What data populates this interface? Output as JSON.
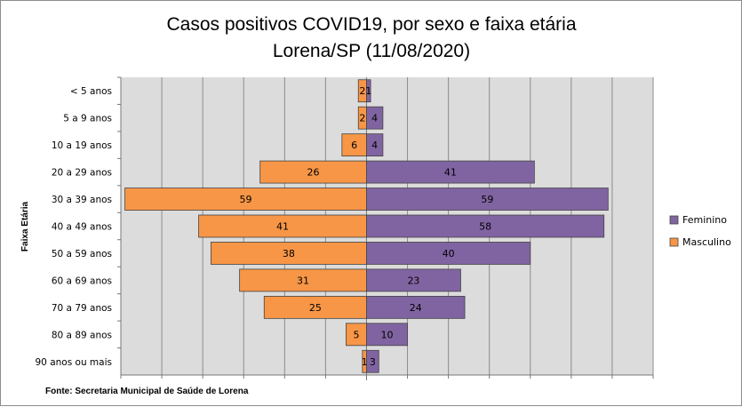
{
  "chart_data": {
    "type": "bar",
    "orientation": "horizontal",
    "title": "Casos positivos COVID19, por sexo e faixa etária",
    "subtitle": "Lorena/SP (11/08/2020)",
    "ylabel": "Faixa Etária",
    "source": "Fonte: Secretaria Municipal  de Saúde de Lorena",
    "categories": [
      "< 5 anos",
      "5 a 9 anos",
      "10 a 19 anos",
      "20 a 29 anos",
      "30 a 39 anos",
      "40 a 49 anos",
      "50 a 59 anos",
      "60 a 69 anos ",
      "70 a 79 anos",
      "80 a 89 anos",
      "90 anos ou mais"
    ],
    "series": [
      {
        "name": "Feminino",
        "color": "#8064a2",
        "values": [
          1,
          4,
          4,
          41,
          59,
          58,
          40,
          23,
          24,
          10,
          3
        ]
      },
      {
        "name": "Masculino",
        "color": "#f79646",
        "values": [
          2,
          2,
          6,
          26,
          59,
          41,
          38,
          31,
          25,
          5,
          1
        ]
      }
    ],
    "xlim": [
      -60,
      70
    ],
    "grid": true,
    "legend_position": "right",
    "plot_background": "#dcdcdc"
  }
}
